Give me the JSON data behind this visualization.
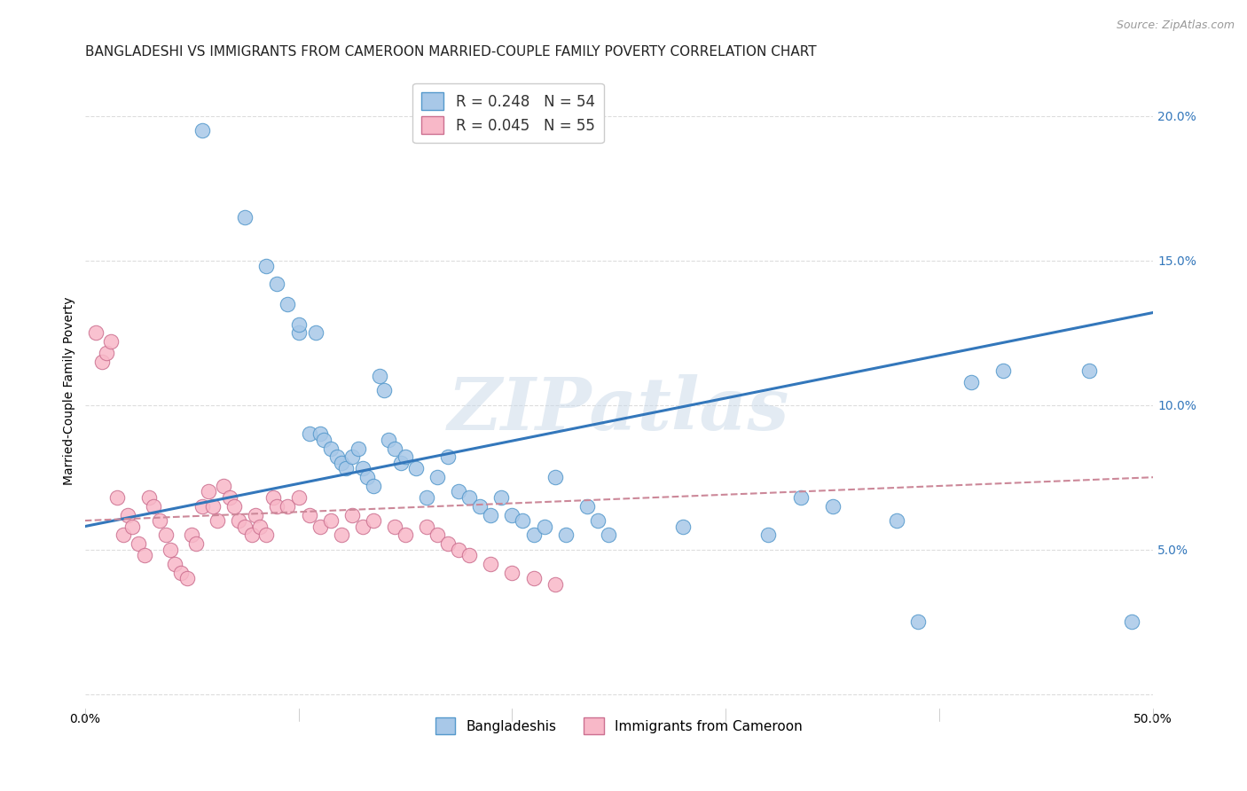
{
  "title": "BANGLADESHI VS IMMIGRANTS FROM CAMEROON MARRIED-COUPLE FAMILY POVERTY CORRELATION CHART",
  "source": "Source: ZipAtlas.com",
  "ylabel": "Married-Couple Family Poverty",
  "xlim": [
    0.0,
    0.5
  ],
  "ylim": [
    -0.005,
    0.215
  ],
  "right_yticks": [
    0.05,
    0.1,
    0.15,
    0.2
  ],
  "right_yticklabels": [
    "5.0%",
    "10.0%",
    "15.0%",
    "20.0%"
  ],
  "xticks": [
    0.0,
    0.1,
    0.2,
    0.3,
    0.4,
    0.5
  ],
  "xticklabels": [
    "0.0%",
    "",
    "",
    "",
    "",
    "50.0%"
  ],
  "blue_scatter_x": [
    0.055,
    0.075,
    0.085,
    0.09,
    0.095,
    0.1,
    0.1,
    0.105,
    0.108,
    0.11,
    0.112,
    0.115,
    0.118,
    0.12,
    0.122,
    0.125,
    0.128,
    0.13,
    0.132,
    0.135,
    0.138,
    0.14,
    0.142,
    0.145,
    0.148,
    0.15,
    0.155,
    0.16,
    0.165,
    0.17,
    0.175,
    0.18,
    0.185,
    0.19,
    0.195,
    0.2,
    0.205,
    0.21,
    0.215,
    0.22,
    0.225,
    0.235,
    0.24,
    0.245,
    0.28,
    0.32,
    0.335,
    0.35,
    0.38,
    0.39,
    0.415,
    0.43,
    0.47,
    0.49
  ],
  "blue_scatter_y": [
    0.195,
    0.165,
    0.148,
    0.142,
    0.135,
    0.125,
    0.128,
    0.09,
    0.125,
    0.09,
    0.088,
    0.085,
    0.082,
    0.08,
    0.078,
    0.082,
    0.085,
    0.078,
    0.075,
    0.072,
    0.11,
    0.105,
    0.088,
    0.085,
    0.08,
    0.082,
    0.078,
    0.068,
    0.075,
    0.082,
    0.07,
    0.068,
    0.065,
    0.062,
    0.068,
    0.062,
    0.06,
    0.055,
    0.058,
    0.075,
    0.055,
    0.065,
    0.06,
    0.055,
    0.058,
    0.055,
    0.068,
    0.065,
    0.06,
    0.025,
    0.108,
    0.112,
    0.112,
    0.025
  ],
  "pink_scatter_x": [
    0.005,
    0.008,
    0.01,
    0.012,
    0.015,
    0.018,
    0.02,
    0.022,
    0.025,
    0.028,
    0.03,
    0.032,
    0.035,
    0.038,
    0.04,
    0.042,
    0.045,
    0.048,
    0.05,
    0.052,
    0.055,
    0.058,
    0.06,
    0.062,
    0.065,
    0.068,
    0.07,
    0.072,
    0.075,
    0.078,
    0.08,
    0.082,
    0.085,
    0.088,
    0.09,
    0.095,
    0.1,
    0.105,
    0.11,
    0.115,
    0.12,
    0.125,
    0.13,
    0.135,
    0.145,
    0.15,
    0.16,
    0.165,
    0.17,
    0.175,
    0.18,
    0.19,
    0.2,
    0.21,
    0.22
  ],
  "pink_scatter_y": [
    0.125,
    0.115,
    0.118,
    0.122,
    0.068,
    0.055,
    0.062,
    0.058,
    0.052,
    0.048,
    0.068,
    0.065,
    0.06,
    0.055,
    0.05,
    0.045,
    0.042,
    0.04,
    0.055,
    0.052,
    0.065,
    0.07,
    0.065,
    0.06,
    0.072,
    0.068,
    0.065,
    0.06,
    0.058,
    0.055,
    0.062,
    0.058,
    0.055,
    0.068,
    0.065,
    0.065,
    0.068,
    0.062,
    0.058,
    0.06,
    0.055,
    0.062,
    0.058,
    0.06,
    0.058,
    0.055,
    0.058,
    0.055,
    0.052,
    0.05,
    0.048,
    0.045,
    0.042,
    0.04,
    0.038
  ],
  "blue_line_x": [
    0.0,
    0.5
  ],
  "blue_line_y": [
    0.058,
    0.132
  ],
  "pink_line_x": [
    0.0,
    0.5
  ],
  "pink_line_y": [
    0.06,
    0.075
  ],
  "blue_scatter_color": "#a8c8e8",
  "blue_scatter_edge": "#5599cc",
  "pink_scatter_color": "#f8b8c8",
  "pink_scatter_edge": "#cc7090",
  "blue_line_color": "#3377bb",
  "pink_line_color": "#cc8899",
  "watermark_text": "ZIPatlas",
  "watermark_color": "#c8d8e8",
  "background_color": "#ffffff",
  "grid_color": "#dddddd",
  "title_fontsize": 11,
  "axis_label_fontsize": 10,
  "tick_fontsize": 10,
  "right_tick_color": "#3377bb"
}
